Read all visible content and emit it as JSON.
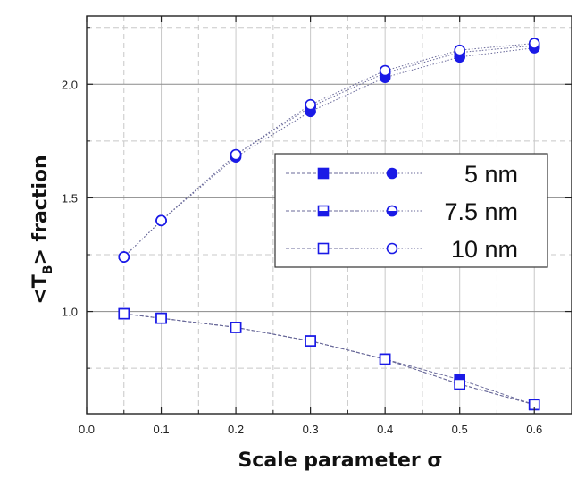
{
  "chart_data": {
    "type": "scatter",
    "xlabel": "Scale parameter σ",
    "ylabel_main": "<T",
    "ylabel_sub": "B",
    "ylabel_rest": "> fraction",
    "xlim": [
      0.0,
      0.65
    ],
    "ylim": [
      0.55,
      2.3
    ],
    "x_ticks": [
      "0.0",
      "0.1",
      "0.2",
      "0.3",
      "0.4",
      "0.5",
      "0.6"
    ],
    "y_ticks": [
      "1.0",
      "1.5",
      "2.0"
    ],
    "grid": true,
    "legend_position": "center-right",
    "legend": [
      "5 nm",
      "7.5 nm",
      "10 nm"
    ],
    "x": [
      0.05,
      0.1,
      0.2,
      0.3,
      0.4,
      0.5,
      0.6
    ],
    "series": [
      {
        "name": "5 nm",
        "marker": "square",
        "fill": "full",
        "values": [
          0.99,
          0.97,
          0.93,
          0.87,
          0.79,
          0.7,
          0.59
        ]
      },
      {
        "name": "7.5 nm",
        "marker": "square",
        "fill": "half",
        "values": [
          0.99,
          0.97,
          0.93,
          0.87,
          0.79,
          0.68,
          0.59
        ]
      },
      {
        "name": "10 nm",
        "marker": "square",
        "fill": "empty",
        "values": [
          0.99,
          0.97,
          0.93,
          0.87,
          0.79,
          0.68,
          0.59
        ]
      },
      {
        "name": "5 nm",
        "marker": "circle",
        "fill": "full",
        "values": [
          1.24,
          1.4,
          1.68,
          1.88,
          2.03,
          2.12,
          2.16
        ]
      },
      {
        "name": "7.5 nm",
        "marker": "circle",
        "fill": "half",
        "values": [
          1.24,
          1.4,
          1.69,
          1.9,
          2.05,
          2.14,
          2.17
        ]
      },
      {
        "name": "10 nm",
        "marker": "circle",
        "fill": "empty",
        "values": [
          1.24,
          1.4,
          1.69,
          1.91,
          2.06,
          2.15,
          2.18
        ]
      }
    ],
    "colors": {
      "marker": "#1a1ae6",
      "line": "#6a6a9a",
      "grid": "#c8c8c8",
      "frame": "#222222"
    }
  }
}
